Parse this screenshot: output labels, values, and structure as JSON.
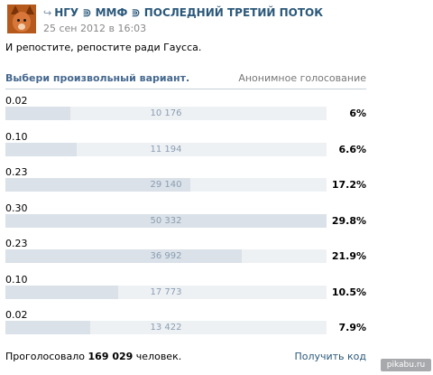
{
  "header": {
    "share_icon": "share-arrow-icon",
    "title": "НГУ ⋑ ММФ ⋑ ПОСЛЕДНИЙ ТРЕТИЙ ПОТОК",
    "date": "25 сен 2012 в 16:03"
  },
  "post": {
    "text": "И репостите, репостите ради Гаусса."
  },
  "poll": {
    "question": "Выбери произвольный вариант.",
    "anonymous": "Анонимное голосование",
    "options": [
      {
        "label": "0.02",
        "count": "10 176",
        "percent": "6%",
        "fill": 0.201
      },
      {
        "label": "0.10",
        "count": "11 194",
        "percent": "6.6%",
        "fill": 0.221
      },
      {
        "label": "0.23",
        "count": "29 140",
        "percent": "17.2%",
        "fill": 0.577
      },
      {
        "label": "0.30",
        "count": "50 332",
        "percent": "29.8%",
        "fill": 1.0
      },
      {
        "label": "0.23",
        "count": "36 992",
        "percent": "21.9%",
        "fill": 0.735
      },
      {
        "label": "0.10",
        "count": "17 773",
        "percent": "10.5%",
        "fill": 0.352
      },
      {
        "label": "0.02",
        "count": "13 422",
        "percent": "7.9%",
        "fill": 0.265
      }
    ]
  },
  "footer": {
    "voted_prefix": "Проголосовало",
    "voted_total": "169 029",
    "voted_suffix": "человек.",
    "get_code": "Получить код"
  },
  "watermark": "pikabu.ru"
}
